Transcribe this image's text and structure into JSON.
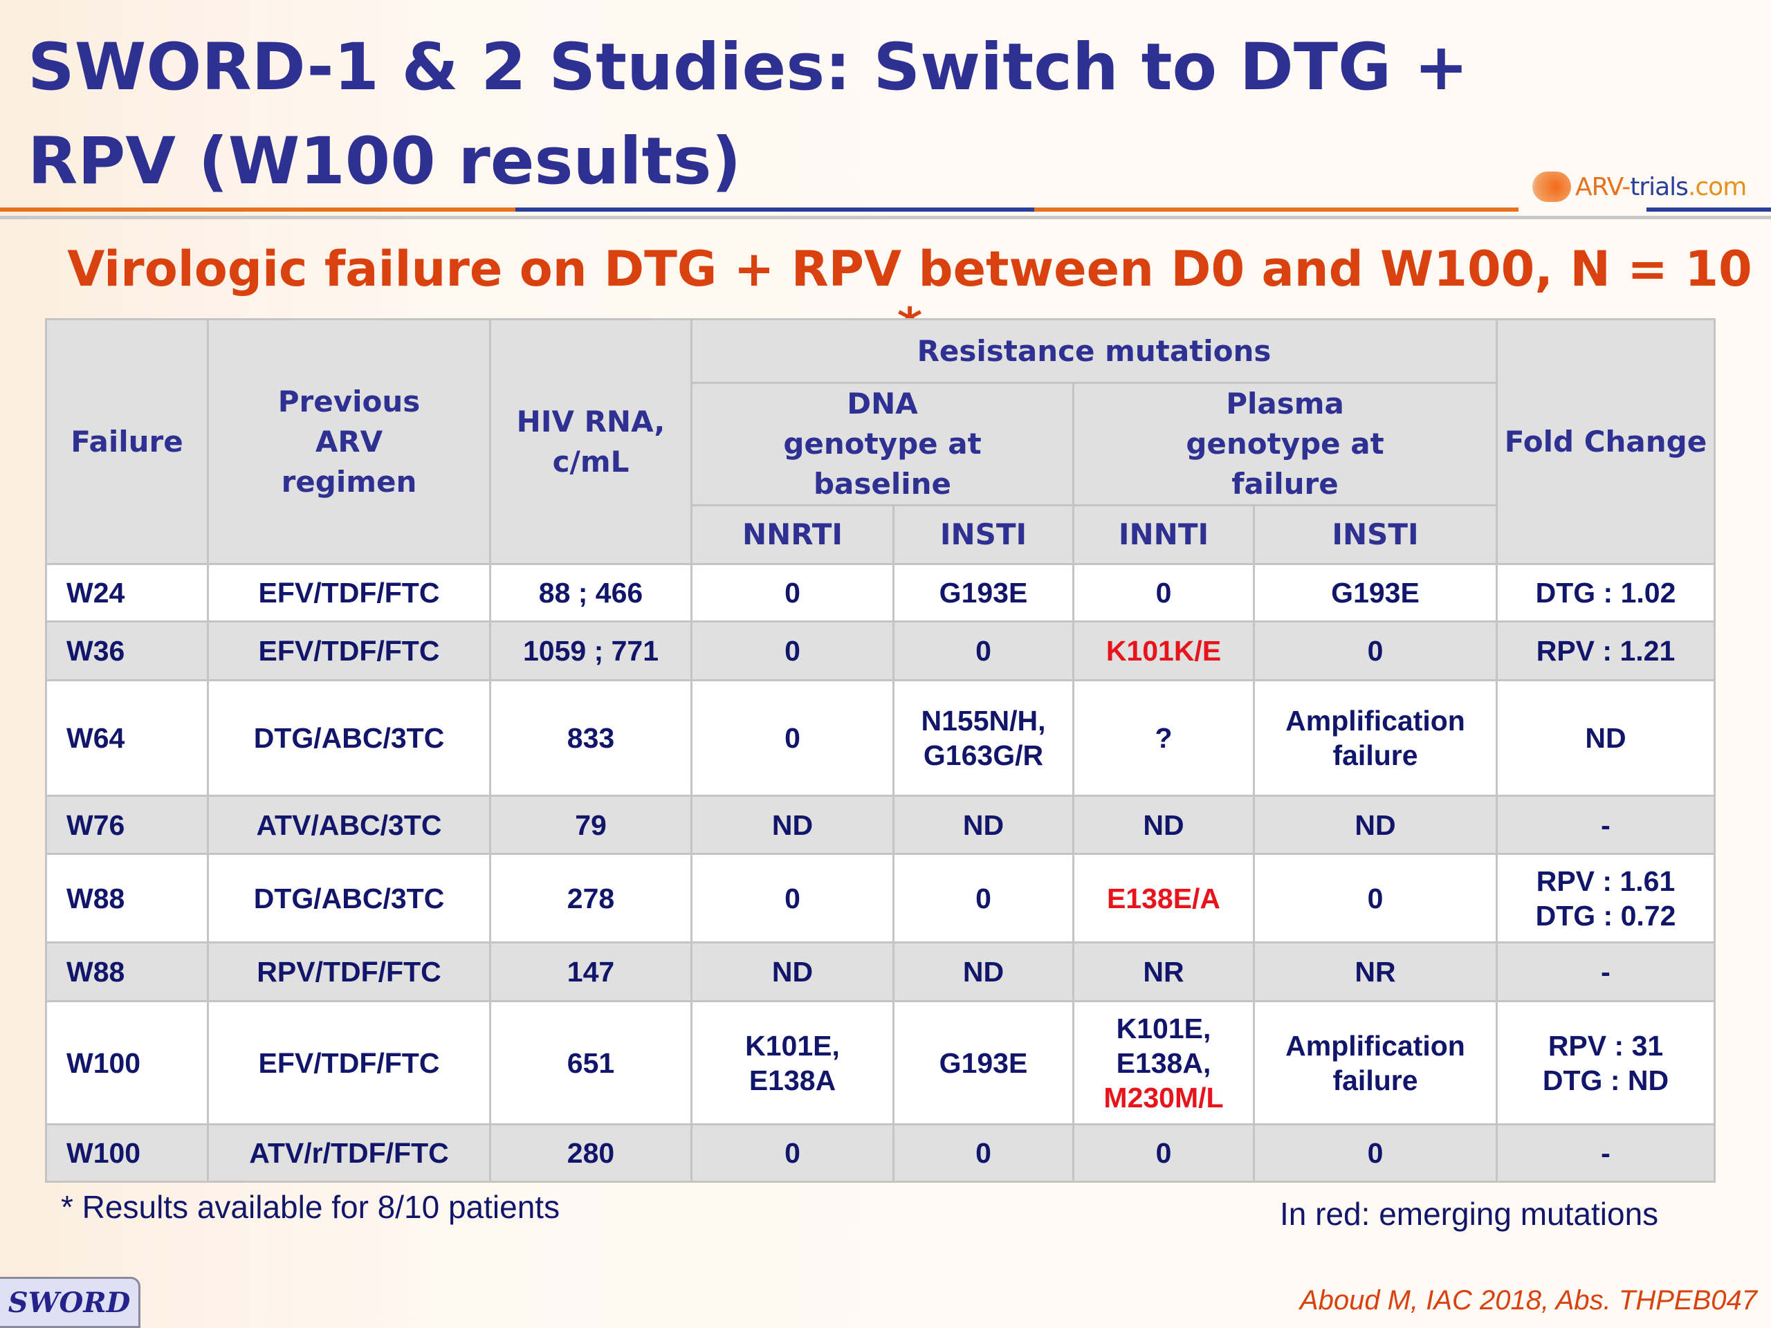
{
  "title": "SWORD-1 & 2 Studies: Switch to DTG + RPV (W100 results)",
  "logo": {
    "arv": "ARV-",
    "trials": "trials",
    "com": ".com"
  },
  "subtitle": "Virologic failure on DTG + RPV between D0 and W100, N = 10 *",
  "header": {
    "failure": "Failure",
    "regimen": "Previous ARV regimen",
    "rna": "HIV RNA, c/mL",
    "resistance": "Resistance mutations",
    "dna": "DNA genotype at baseline",
    "plasma": "Plasma genotype at failure",
    "fold": "Fold Change",
    "nnrti": "NNRTI",
    "insti1": "INSTI",
    "innti": "INNTI",
    "insti2": "INSTI"
  },
  "rows": [
    {
      "cells": [
        [
          {
            "t": "W24"
          }
        ],
        [
          {
            "t": "EFV/TDF/FTC"
          }
        ],
        [
          {
            "t": "88 ; 466"
          }
        ],
        [
          {
            "t": "0"
          }
        ],
        [
          {
            "t": "G193E"
          }
        ],
        [
          {
            "t": "0"
          }
        ],
        [
          {
            "t": "G193E"
          }
        ],
        [
          {
            "t": "DTG : 1.02"
          }
        ]
      ]
    },
    {
      "cells": [
        [
          {
            "t": "W36"
          }
        ],
        [
          {
            "t": "EFV/TDF/FTC"
          }
        ],
        [
          {
            "t": "1059 ; 771"
          }
        ],
        [
          {
            "t": "0"
          }
        ],
        [
          {
            "t": "0"
          }
        ],
        [
          {
            "t": "K101K/E",
            "red": true
          }
        ],
        [
          {
            "t": "0"
          }
        ],
        [
          {
            "t": "RPV : 1.21"
          }
        ]
      ]
    },
    {
      "cells": [
        [
          {
            "t": "W64"
          }
        ],
        [
          {
            "t": "DTG/ABC/3TC"
          }
        ],
        [
          {
            "t": "833"
          }
        ],
        [
          {
            "t": "0"
          }
        ],
        [
          {
            "t": "N155N/H,"
          },
          {
            "t": "G163G/R"
          }
        ],
        [
          {
            "t": "?"
          }
        ],
        [
          {
            "t": "Amplification"
          },
          {
            "t": "failure"
          }
        ],
        [
          {
            "t": "ND"
          }
        ]
      ]
    },
    {
      "cells": [
        [
          {
            "t": "W76"
          }
        ],
        [
          {
            "t": "ATV/ABC/3TC"
          }
        ],
        [
          {
            "t": "79"
          }
        ],
        [
          {
            "t": "ND"
          }
        ],
        [
          {
            "t": "ND"
          }
        ],
        [
          {
            "t": "ND"
          }
        ],
        [
          {
            "t": "ND"
          }
        ],
        [
          {
            "t": "-"
          }
        ]
      ]
    },
    {
      "cells": [
        [
          {
            "t": "W88"
          }
        ],
        [
          {
            "t": "DTG/ABC/3TC"
          }
        ],
        [
          {
            "t": "278"
          }
        ],
        [
          {
            "t": "0"
          }
        ],
        [
          {
            "t": "0"
          }
        ],
        [
          {
            "t": "E138E/A",
            "red": true
          }
        ],
        [
          {
            "t": "0"
          }
        ],
        [
          {
            "t": "RPV : 1.61"
          },
          {
            "t": "DTG : 0.72"
          }
        ]
      ]
    },
    {
      "cells": [
        [
          {
            "t": "W88"
          }
        ],
        [
          {
            "t": "RPV/TDF/FTC"
          }
        ],
        [
          {
            "t": "147"
          }
        ],
        [
          {
            "t": "ND"
          }
        ],
        [
          {
            "t": "ND"
          }
        ],
        [
          {
            "t": "NR"
          }
        ],
        [
          {
            "t": "NR"
          }
        ],
        [
          {
            "t": "-"
          }
        ]
      ]
    },
    {
      "cells": [
        [
          {
            "t": "W100"
          }
        ],
        [
          {
            "t": "EFV/TDF/FTC"
          }
        ],
        [
          {
            "t": "651"
          }
        ],
        [
          {
            "t": "K101E,"
          },
          {
            "t": "E138A"
          }
        ],
        [
          {
            "t": "G193E"
          }
        ],
        [
          {
            "t": "K101E,"
          },
          {
            "t": "E138A,"
          },
          {
            "t": "M230M/L",
            "red": true
          }
        ],
        [
          {
            "t": "Amplification"
          },
          {
            "t": "failure"
          }
        ],
        [
          {
            "t": "RPV : 31"
          },
          {
            "t": "DTG : ND"
          }
        ]
      ]
    },
    {
      "cells": [
        [
          {
            "t": "W100"
          }
        ],
        [
          {
            "t": "ATV/r/TDF/FTC"
          }
        ],
        [
          {
            "t": "280"
          }
        ],
        [
          {
            "t": "0"
          }
        ],
        [
          {
            "t": "0"
          }
        ],
        [
          {
            "t": "0"
          }
        ],
        [
          {
            "t": "0"
          }
        ],
        [
          {
            "t": "-"
          }
        ]
      ]
    }
  ],
  "footnote": "* Results available for 8/10 patients",
  "legend": "In red: emerging mutations",
  "citation": "Aboud M, IAC 2018, Abs. THPEB047",
  "badge": "SWORD",
  "colors": {
    "title": "#2e3192",
    "accent": "#d9410f",
    "emerging": "#e8141c"
  }
}
